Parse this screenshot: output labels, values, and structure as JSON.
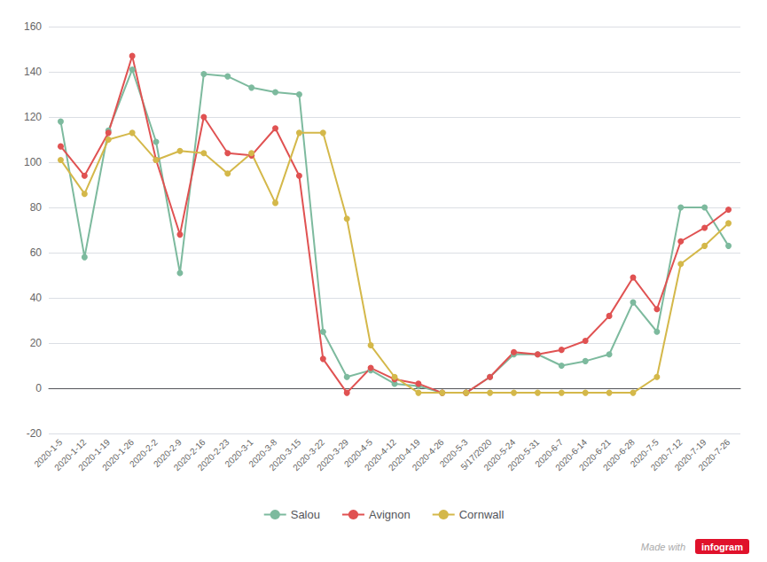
{
  "chart_data": {
    "type": "line",
    "categories": [
      "2020-1-5",
      "2020-1-12",
      "2020-1-19",
      "2020-1-26",
      "2020-2-2",
      "2020-2-9",
      "2020-2-16",
      "2020-2-23",
      "2020-3-1",
      "2020-3-8",
      "2020-3-15",
      "2020-3-22",
      "2020-3-29",
      "2020-4-5",
      "2020-4-12",
      "2020-4-19",
      "2020-4-26",
      "2020-5-3",
      "5/17/2020",
      "2020-5-24",
      "2020-5-31",
      "2020-6-7",
      "2020-6-14",
      "2020-6-21",
      "2020-6-28",
      "2020-7-5",
      "2020-7-12",
      "2020-7-19",
      "2020-7-26"
    ],
    "series": [
      {
        "name": "Salou",
        "color": "#7dba9e",
        "values": [
          118,
          58,
          114,
          141,
          109,
          51,
          139,
          138,
          133,
          131,
          130,
          25,
          5,
          8,
          2,
          1,
          -2,
          -2,
          5,
          15,
          15,
          10,
          12,
          15,
          38,
          25,
          80,
          80,
          63
        ]
      },
      {
        "name": "Avignon",
        "color": "#e05252",
        "values": [
          107,
          94,
          113,
          147,
          101,
          68,
          120,
          104,
          103,
          115,
          94,
          13,
          -2,
          9,
          4,
          2,
          -2,
          -2,
          5,
          16,
          15,
          17,
          21,
          32,
          49,
          35,
          65,
          71,
          79
        ]
      },
      {
        "name": "Cornwall",
        "color": "#d4b84a",
        "values": [
          101,
          86,
          110,
          113,
          101,
          105,
          104,
          95,
          104,
          82,
          113,
          113,
          75,
          19,
          5,
          -2,
          -2,
          -2,
          -2,
          -2,
          -2,
          -2,
          -2,
          -2,
          -2,
          5,
          55,
          63,
          73
        ]
      }
    ],
    "ylim": [
      -20,
      160
    ],
    "yticks": [
      -20,
      0,
      20,
      40,
      60,
      80,
      100,
      120,
      140,
      160
    ],
    "grid": true,
    "legend": "bottom",
    "marker": "circle",
    "annotations": [
      "Made with",
      "infogram"
    ]
  }
}
